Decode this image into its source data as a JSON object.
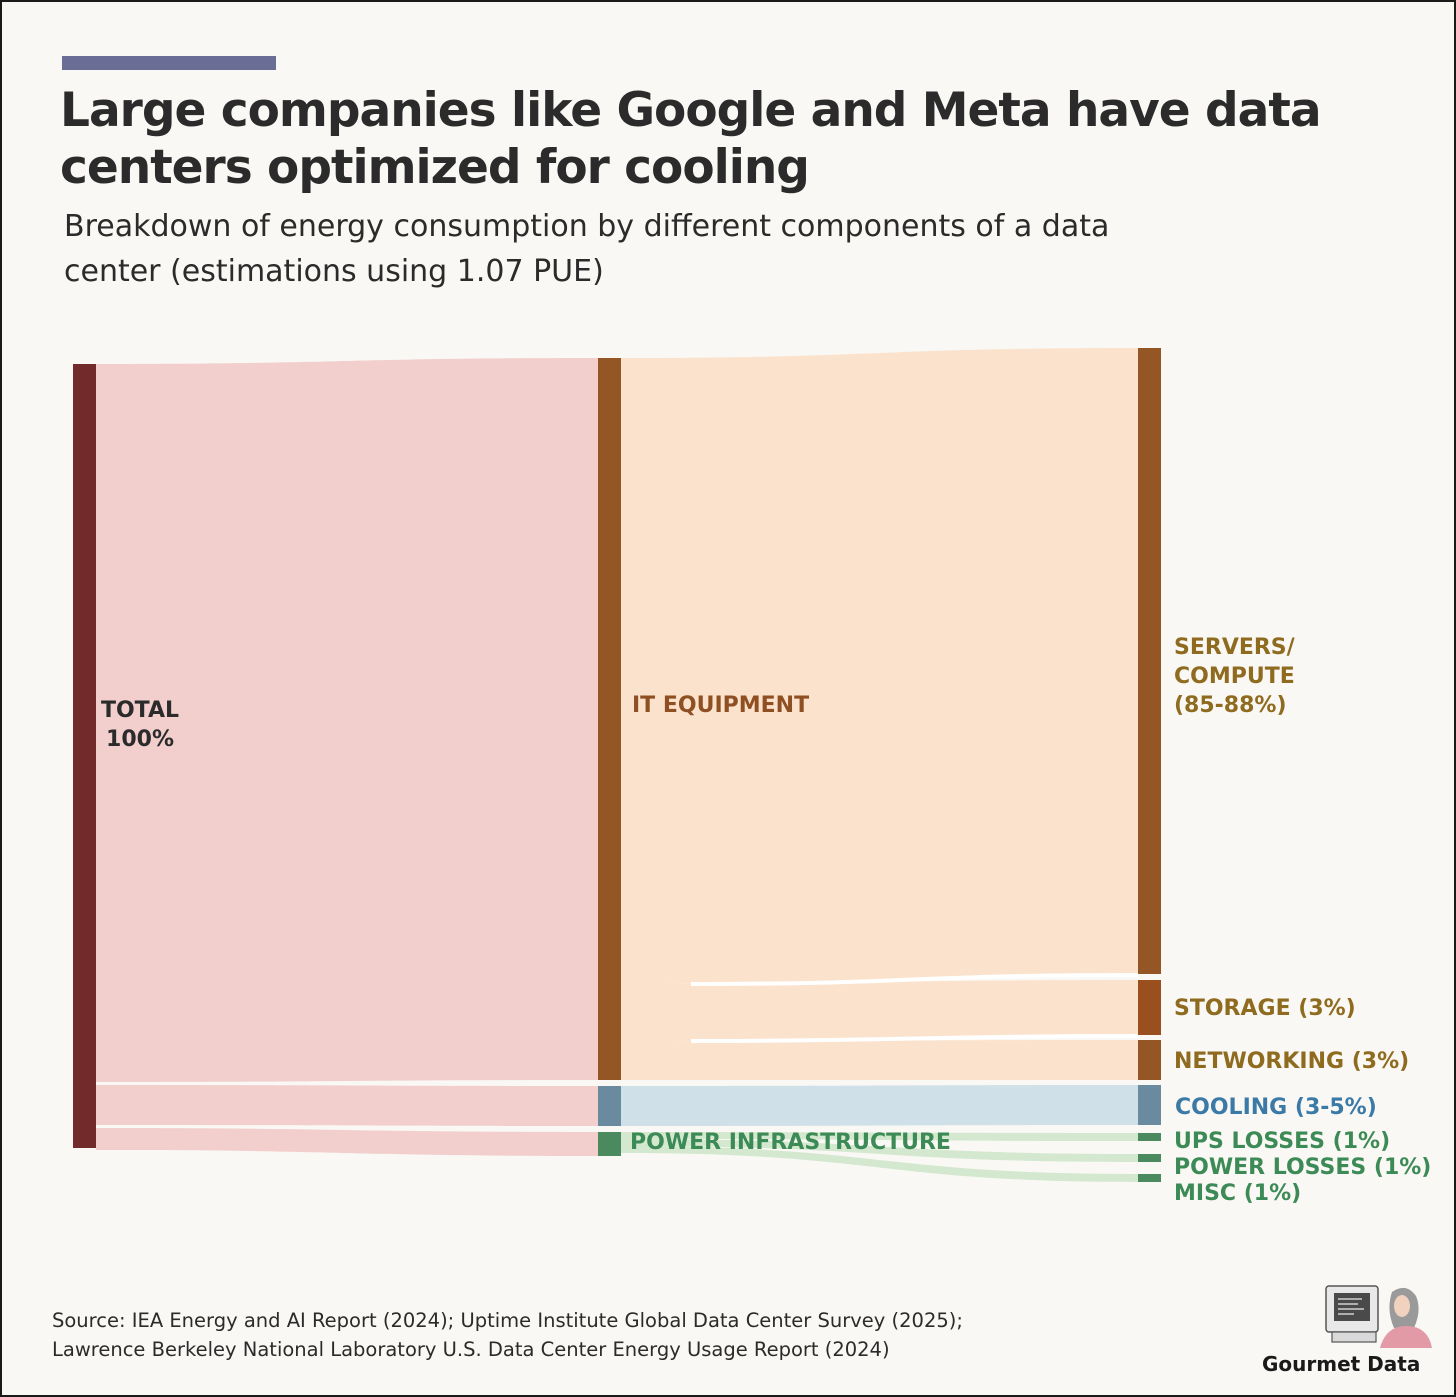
{
  "header": {
    "title": "Large companies like Google and Meta have data centers optimized for cooling",
    "subtitle": "Breakdown of energy consumption by different components of a data center (estimations using 1.07 PUE)",
    "accent_color": "#6a6d96"
  },
  "chart_data": {
    "type": "sankey",
    "unit": "%",
    "nodes": [
      {
        "id": "total",
        "label_lines": [
          "TOTAL",
          "100%"
        ],
        "value": 100,
        "column": 0,
        "color": "#732a2b",
        "label_color": "#2b2b2b"
      },
      {
        "id": "it",
        "label_lines": [
          "IT EQUIPMENT"
        ],
        "value": 92,
        "column": 1,
        "color": "#955626",
        "label_color": "#8e4f22"
      },
      {
        "id": "cooling",
        "label_lines": [
          "COOLING (3-5%)"
        ],
        "value": 5,
        "column": 1,
        "color": "#6a8aa0",
        "label_color": "#3b7aa6",
        "label_side": "far"
      },
      {
        "id": "power",
        "label_lines": [
          "POWER INFRASTRUCTURE"
        ],
        "value": 3,
        "column": 1,
        "color": "#4b8a5e",
        "label_color": "#3c8a55"
      },
      {
        "id": "servers",
        "label_lines": [
          "SERVERS/",
          "COMPUTE",
          "(85-88%)"
        ],
        "value": 86,
        "column": 2,
        "color": "#955626",
        "label_color": "#8f6b1f"
      },
      {
        "id": "storage",
        "label_lines": [
          "STORAGE (3%)"
        ],
        "value": 3,
        "column": 2,
        "color": "#9a4f1e",
        "label_color": "#8f6b1f"
      },
      {
        "id": "networking",
        "label_lines": [
          "NETWORKING (3%)"
        ],
        "value": 3,
        "column": 2,
        "color": "#955626",
        "label_color": "#8f6b1f"
      },
      {
        "id": "ups",
        "label_lines": [
          "UPS LOSSES (1%)"
        ],
        "value": 1,
        "column": 2,
        "color": "#4b8a5e",
        "label_color": "#3c8a55"
      },
      {
        "id": "power_losses",
        "label_lines": [
          "POWER LOSSES (1%)"
        ],
        "value": 1,
        "column": 2,
        "color": "#4b8a5e",
        "label_color": "#3c8a55"
      },
      {
        "id": "misc",
        "label_lines": [
          "MISC (1%)"
        ],
        "value": 1,
        "column": 2,
        "color": "#4b8a5e",
        "label_color": "#3c8a55"
      }
    ],
    "links": [
      {
        "source": "total",
        "target": "it",
        "value": 92,
        "color": "#f2cfcd"
      },
      {
        "source": "total",
        "target": "cooling",
        "value": 5,
        "color": "#f2cfcd"
      },
      {
        "source": "total",
        "target": "power",
        "value": 3,
        "color": "#f2cfcd"
      },
      {
        "source": "it",
        "target": "servers",
        "value": 86,
        "color": "#fbe2cc"
      },
      {
        "source": "it",
        "target": "storage",
        "value": 3,
        "color": "#fbe2cc"
      },
      {
        "source": "it",
        "target": "networking",
        "value": 3,
        "color": "#fbe2cc"
      },
      {
        "source": "cooling",
        "target": "cooling",
        "value": 5,
        "color": "#cfe0e8"
      },
      {
        "source": "power",
        "target": "ups",
        "value": 1,
        "color": "#d3e8cf"
      },
      {
        "source": "power",
        "target": "power_losses",
        "value": 1,
        "color": "#d3e8cf"
      },
      {
        "source": "power",
        "target": "misc",
        "value": 1,
        "color": "#d3e8cf"
      }
    ]
  },
  "footer": {
    "source_lines": [
      "Source: IEA Energy and AI Report (2024); Uptime Institute Global Data Center Survey (2025);",
      "Lawrence Berkeley National Laboratory U.S. Data Center Energy Usage Report (2024)"
    ],
    "brand": "Gourmet Data",
    "logo_icon": "person-at-computer-icon"
  }
}
